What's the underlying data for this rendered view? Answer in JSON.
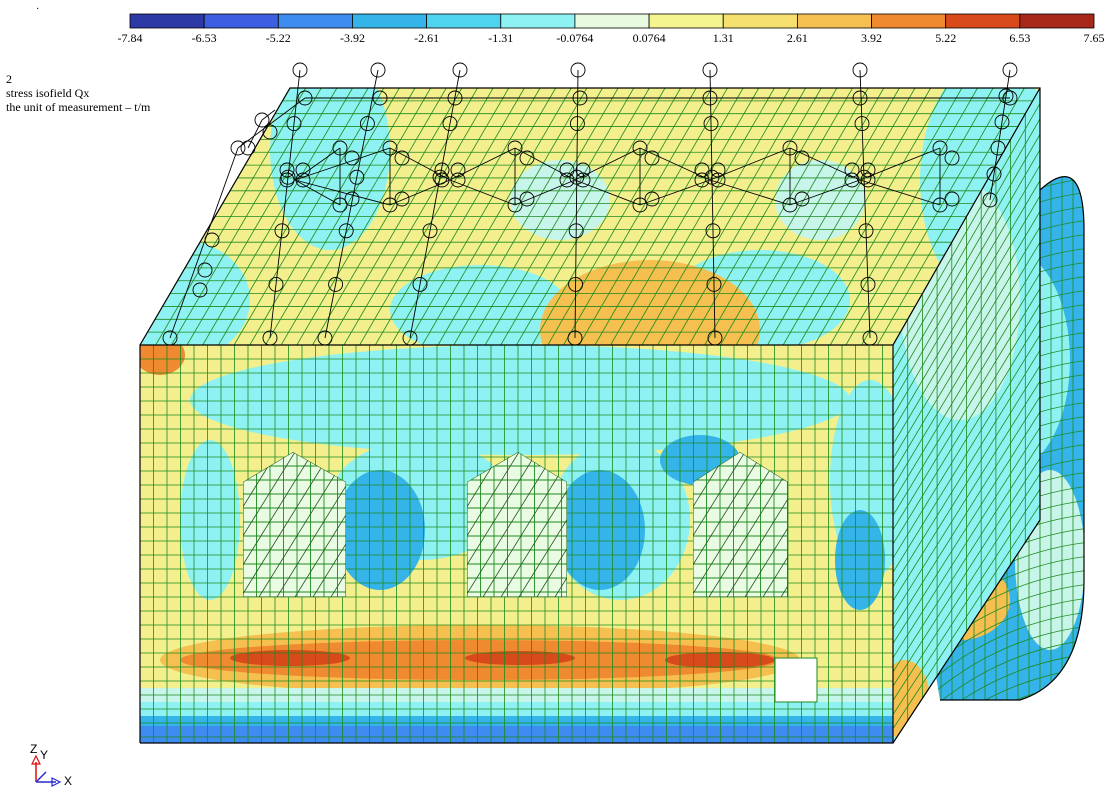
{
  "view": {
    "case_number": "2",
    "title": "stress isofield Qx",
    "unit_note": "the unit of measurement – t/m"
  },
  "legend": {
    "ticks": [
      "-7.84",
      "-6.53",
      "-5.22",
      "-3.92",
      "-2.61",
      "-1.31",
      "-0.0764",
      "0.0764",
      "1.31",
      "2.61",
      "3.92",
      "5.22",
      "6.53",
      "7.65"
    ],
    "colors": [
      "#2d3aa6",
      "#3b5fe0",
      "#3f8cf0",
      "#35b4ea",
      "#4fd4f0",
      "#8ef2f2",
      "#e8fbe0",
      "#f5f590",
      "#f5e070",
      "#f5c050",
      "#f08a30",
      "#d84a1a",
      "#a8281a"
    ]
  },
  "axes": {
    "z": "Z",
    "y": "Y",
    "x": "X"
  },
  "palette": {
    "mesh": "#1e8a1e",
    "yellow": "#f3ef8c",
    "cyan": "#8ef2f2",
    "light_cyan": "#c8f5ea",
    "blue": "#35b4ea",
    "deep_blue": "#3f8cf0",
    "orange": "#f5c050",
    "dark_orange": "#f08a30",
    "red": "#d84a1a",
    "hatch_fill": "#eafbe3",
    "ink": "#000000"
  }
}
